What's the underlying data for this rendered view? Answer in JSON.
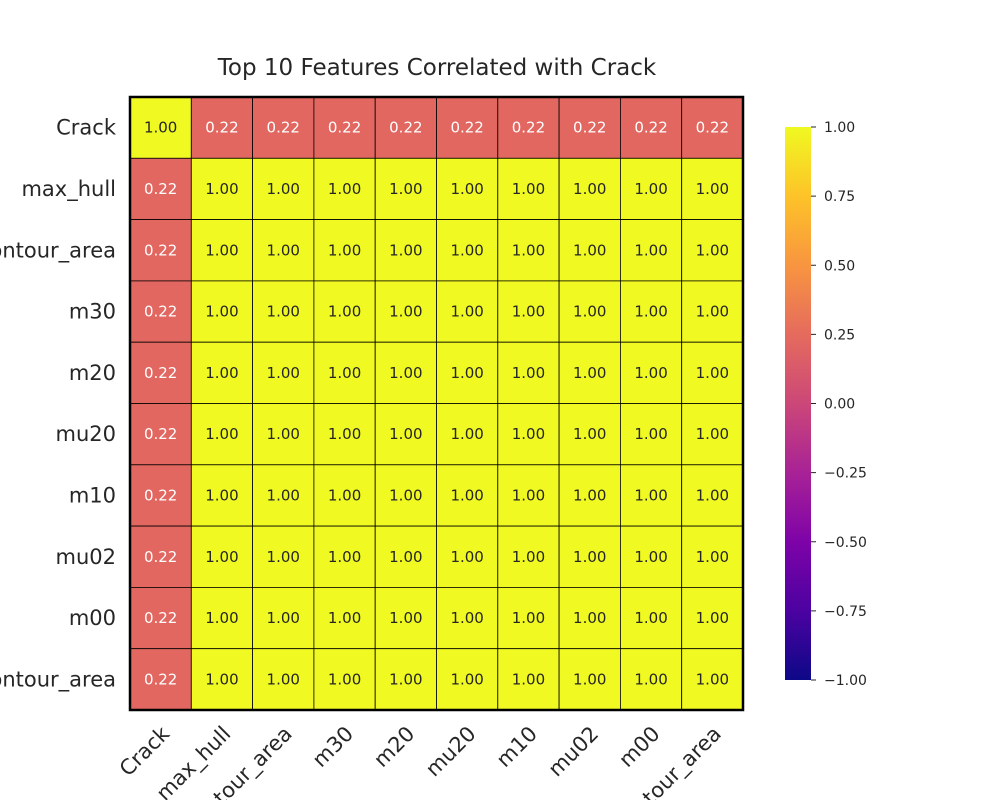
{
  "chart_data": {
    "type": "heatmap",
    "title": "Top 10 Features Correlated with Crack",
    "row_labels": [
      "Crack",
      "max_hull",
      "contour_area",
      "m30",
      "m20",
      "mu20",
      "m10",
      "mu02",
      "m00",
      "contour_area"
    ],
    "col_labels": [
      "Crack",
      "max_hull",
      "contour_area",
      "m30",
      "m20",
      "mu20",
      "m10",
      "mu02",
      "m00",
      "contour_area"
    ],
    "values": [
      [
        1.0,
        0.22,
        0.22,
        0.22,
        0.22,
        0.22,
        0.22,
        0.22,
        0.22,
        0.22
      ],
      [
        0.22,
        1.0,
        1.0,
        1.0,
        1.0,
        1.0,
        1.0,
        1.0,
        1.0,
        1.0
      ],
      [
        0.22,
        1.0,
        1.0,
        1.0,
        1.0,
        1.0,
        1.0,
        1.0,
        1.0,
        1.0
      ],
      [
        0.22,
        1.0,
        1.0,
        1.0,
        1.0,
        1.0,
        1.0,
        1.0,
        1.0,
        1.0
      ],
      [
        0.22,
        1.0,
        1.0,
        1.0,
        1.0,
        1.0,
        1.0,
        1.0,
        1.0,
        1.0
      ],
      [
        0.22,
        1.0,
        1.0,
        1.0,
        1.0,
        1.0,
        1.0,
        1.0,
        1.0,
        1.0
      ],
      [
        0.22,
        1.0,
        1.0,
        1.0,
        1.0,
        1.0,
        1.0,
        1.0,
        1.0,
        1.0
      ],
      [
        0.22,
        1.0,
        1.0,
        1.0,
        1.0,
        1.0,
        1.0,
        1.0,
        1.0,
        1.0
      ],
      [
        0.22,
        1.0,
        1.0,
        1.0,
        1.0,
        1.0,
        1.0,
        1.0,
        1.0,
        1.0
      ],
      [
        0.22,
        1.0,
        1.0,
        1.0,
        1.0,
        1.0,
        1.0,
        1.0,
        1.0,
        1.0
      ]
    ],
    "value_format_decimals": 2,
    "colormap": "plasma",
    "vmin": -1.0,
    "vmax": 1.0,
    "colorbar_ticks": [
      "1.00",
      "0.75",
      "0.50",
      "0.25",
      "0.00",
      "−0.25",
      "−0.50",
      "−0.75",
      "−1.00"
    ],
    "colorbar_tick_values": [
      1.0,
      0.75,
      0.5,
      0.25,
      0.0,
      -0.25,
      -0.5,
      -0.75,
      -1.0
    ],
    "colors": {
      "high": "#f0f921",
      "mid_0.22": "#e56b5d",
      "text_dark": "#262626",
      "text_light": "#ffffff",
      "grid": "#000000"
    },
    "legend": "right colorbar"
  }
}
